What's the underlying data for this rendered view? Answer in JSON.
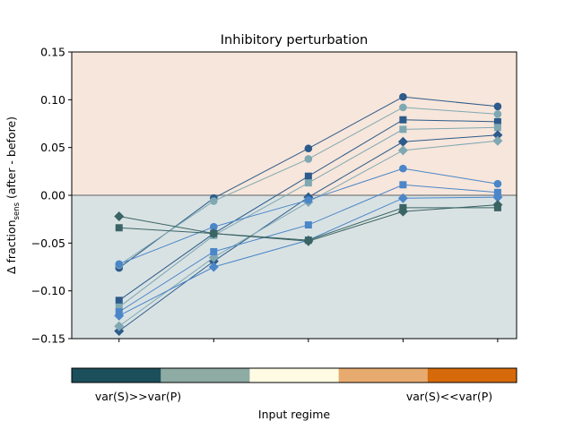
{
  "chart_data": {
    "type": "line",
    "title": "Inhibitory perturbation",
    "ylabel_prefix": "Δ fraction",
    "ylabel_sub": "sens",
    "ylabel_suffix": " (after - before)",
    "xlabel": "Input regime",
    "ylim": [
      -0.15,
      0.15
    ],
    "yticks": [
      -0.15,
      -0.1,
      -0.05,
      0.0,
      0.05,
      0.1,
      0.15
    ],
    "ytick_labels": [
      "−0.15",
      "−0.10",
      "−0.05",
      "0.00",
      "0.05",
      "0.10",
      "0.15"
    ],
    "x": [
      1,
      2,
      3,
      4,
      5
    ],
    "xlim": [
      0.5,
      5.2
    ],
    "grid": false,
    "positive_region_color": "#f7e6db",
    "negative_region_color": "#d9e2e3",
    "zero_line_color": "#8c8c8c",
    "series": [
      {
        "marker": "circle",
        "color": "#2d5b8b",
        "values": [
          -0.076,
          -0.003,
          0.049,
          0.103,
          0.093
        ]
      },
      {
        "marker": "circle",
        "color": "#7fa8b2",
        "values": [
          -0.073,
          -0.006,
          0.038,
          0.092,
          0.085
        ]
      },
      {
        "marker": "square",
        "color": "#2d5b8b",
        "values": [
          -0.11,
          -0.04,
          0.02,
          0.079,
          0.077
        ]
      },
      {
        "marker": "square",
        "color": "#7fa8b2",
        "values": [
          -0.117,
          -0.042,
          0.013,
          0.069,
          0.071
        ]
      },
      {
        "marker": "diamond",
        "color": "#2d5b8b",
        "values": [
          -0.142,
          -0.069,
          -0.002,
          0.056,
          0.063
        ]
      },
      {
        "marker": "diamond",
        "color": "#7fa8b2",
        "values": [
          -0.137,
          -0.065,
          -0.007,
          0.047,
          0.057
        ]
      },
      {
        "marker": "circle",
        "color": "#4a86c8",
        "values": [
          -0.072,
          -0.033,
          -0.005,
          0.028,
          0.012
        ]
      },
      {
        "marker": "square",
        "color": "#4a86c8",
        "values": [
          -0.122,
          -0.059,
          -0.031,
          0.011,
          0.003
        ]
      },
      {
        "marker": "diamond",
        "color": "#4a86c8",
        "values": [
          -0.126,
          -0.075,
          -0.047,
          -0.003,
          -0.002
        ]
      },
      {
        "marker": "square",
        "color": "#3b6464",
        "values": [
          -0.034,
          -0.04,
          -0.047,
          -0.013,
          -0.013
        ]
      },
      {
        "marker": "diamond",
        "color": "#3b6464",
        "values": [
          -0.022,
          -0.04,
          -0.048,
          -0.017,
          -0.01
        ]
      }
    ],
    "colorbar": {
      "colors": [
        "#1b4f5b",
        "#8eaba4",
        "#fefbe2",
        "#e8ab6f",
        "#d66a0a"
      ],
      "left_label": "var(S)>>var(P)",
      "right_label": "var(S)<<var(P)"
    }
  }
}
